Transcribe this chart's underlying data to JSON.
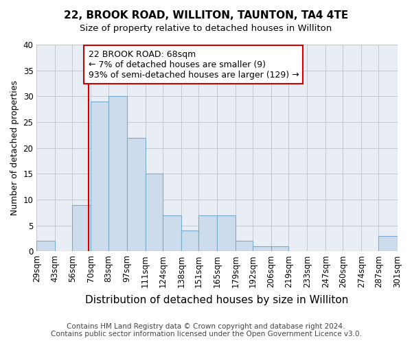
{
  "title": "22, BROOK ROAD, WILLITON, TAUNTON, TA4 4TE",
  "subtitle": "Size of property relative to detached houses in Williton",
  "xlabel": "Distribution of detached houses by size in Williton",
  "ylabel": "Number of detached properties",
  "bin_labels": [
    "29sqm",
    "43sqm",
    "56sqm",
    "70sqm",
    "83sqm",
    "97sqm",
    "111sqm",
    "124sqm",
    "138sqm",
    "151sqm",
    "165sqm",
    "179sqm",
    "192sqm",
    "206sqm",
    "219sqm",
    "233sqm",
    "247sqm",
    "260sqm",
    "274sqm",
    "287sqm",
    "301sqm"
  ],
  "bin_edges": [
    29,
    43,
    56,
    70,
    83,
    97,
    111,
    124,
    138,
    151,
    165,
    179,
    192,
    206,
    219,
    233,
    247,
    260,
    274,
    287,
    301
  ],
  "bar_heights": [
    2,
    0,
    9,
    29,
    30,
    22,
    15,
    7,
    4,
    7,
    7,
    2,
    1,
    1,
    0,
    0,
    0,
    0,
    0,
    3
  ],
  "bar_color": "#cddcec",
  "bar_edge_color": "#7aaaca",
  "reference_line_x": 68,
  "reference_line_color": "#cc0000",
  "annotation_text": "22 BROOK ROAD: 68sqm\n← 7% of detached houses are smaller (9)\n93% of semi-detached houses are larger (129) →",
  "annotation_box_edge_color": "#cc0000",
  "annotation_box_face_color": "#ffffff",
  "ylim": [
    0,
    40
  ],
  "yticks": [
    0,
    5,
    10,
    15,
    20,
    25,
    30,
    35,
    40
  ],
  "footer_line1": "Contains HM Land Registry data © Crown copyright and database right 2024.",
  "footer_line2": "Contains public sector information licensed under the Open Government Licence v3.0.",
  "title_fontsize": 11,
  "subtitle_fontsize": 9.5,
  "xlabel_fontsize": 11,
  "ylabel_fontsize": 9,
  "tick_fontsize": 8.5,
  "annotation_fontsize": 9,
  "footer_fontsize": 7.5,
  "bg_color": "#e8eef4"
}
